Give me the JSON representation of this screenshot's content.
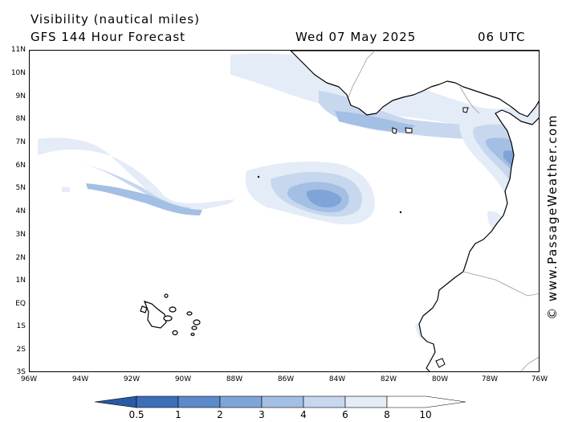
{
  "header": {
    "title": "Visibility (nautical miles)",
    "model": "GFS 144 Hour Forecast",
    "date": "Wed 07 May 2025",
    "time": "06 UTC"
  },
  "watermark": "© www.PassageWeather.com",
  "axes": {
    "lat_labels": [
      "11N",
      "10N",
      "9N",
      "8N",
      "7N",
      "6N",
      "5N",
      "4N",
      "3N",
      "2N",
      "1N",
      "EQ",
      "1S",
      "2S",
      "3S"
    ],
    "lon_labels": [
      "96W",
      "94W",
      "92W",
      "90W",
      "88W",
      "86W",
      "84W",
      "82W",
      "80W",
      "78W",
      "76W"
    ]
  },
  "colorbar": {
    "labels": [
      "0.5",
      "1",
      "2",
      "3",
      "4",
      "6",
      "8",
      "10"
    ],
    "colors": [
      "#2a5aa6",
      "#3d6fb8",
      "#5c8acb",
      "#7fa4d8",
      "#a3bfe4",
      "#c6d7ee",
      "#e3ecf7",
      "#ffffff"
    ]
  },
  "colors": {
    "land": "#ffffff",
    "coast": "#000000",
    "border": "#999999"
  }
}
